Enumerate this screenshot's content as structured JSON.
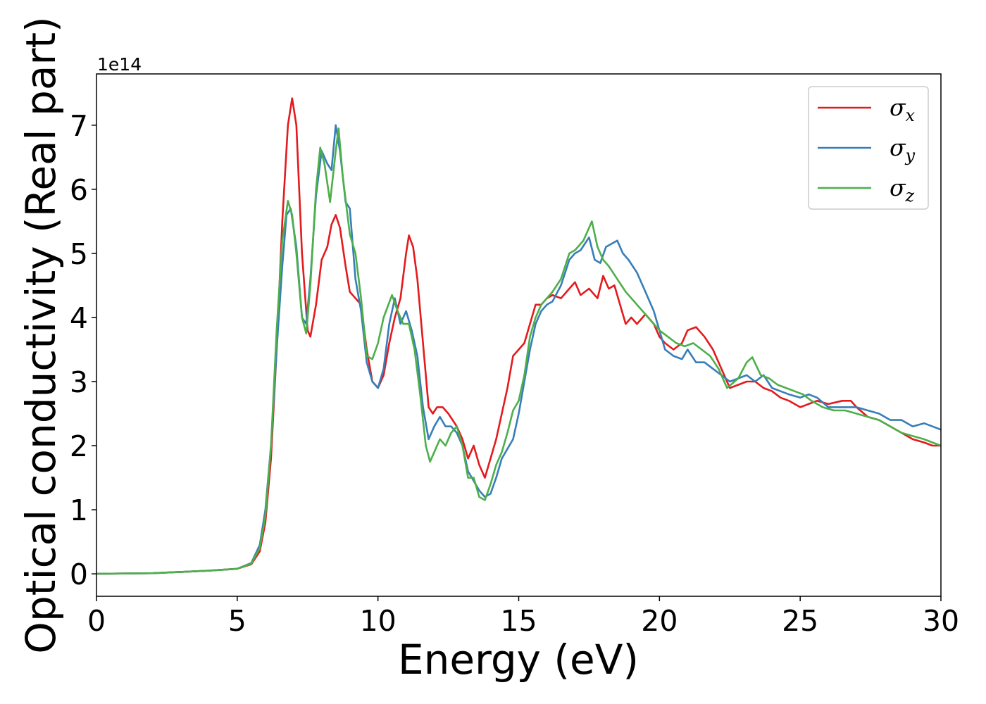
{
  "chart_data": {
    "type": "line",
    "title": "",
    "xlabel": "Energy (eV)",
    "ylabel": "Optical conductivity (Real part)",
    "y_offset_label": "1e14",
    "xlim": [
      0,
      30
    ],
    "ylim": [
      -0.35,
      7.8
    ],
    "x_ticks": [
      0,
      5,
      10,
      15,
      20,
      25,
      30
    ],
    "y_ticks": [
      0,
      1,
      2,
      3,
      4,
      5,
      6,
      7
    ],
    "grid": false,
    "legend_position": "top-right",
    "series": [
      {
        "name": "σ_x",
        "legend_base": "σ",
        "legend_sub": "x",
        "color": "#e41a1c",
        "points": [
          [
            0,
            0
          ],
          [
            2,
            0.01
          ],
          [
            4,
            0.05
          ],
          [
            5,
            0.08
          ],
          [
            5.5,
            0.15
          ],
          [
            5.8,
            0.35
          ],
          [
            6.0,
            0.8
          ],
          [
            6.2,
            1.8
          ],
          [
            6.4,
            3.5
          ],
          [
            6.6,
            5.5
          ],
          [
            6.8,
            7.0
          ],
          [
            6.95,
            7.42
          ],
          [
            7.1,
            7.0
          ],
          [
            7.3,
            5.0
          ],
          [
            7.5,
            3.8
          ],
          [
            7.6,
            3.7
          ],
          [
            7.8,
            4.2
          ],
          [
            8.0,
            4.9
          ],
          [
            8.2,
            5.1
          ],
          [
            8.35,
            5.45
          ],
          [
            8.5,
            5.6
          ],
          [
            8.65,
            5.4
          ],
          [
            8.85,
            4.8
          ],
          [
            9.0,
            4.4
          ],
          [
            9.2,
            4.3
          ],
          [
            9.4,
            4.2
          ],
          [
            9.6,
            3.5
          ],
          [
            9.8,
            3.0
          ],
          [
            10.0,
            2.9
          ],
          [
            10.2,
            3.1
          ],
          [
            10.4,
            3.6
          ],
          [
            10.6,
            4.0
          ],
          [
            10.8,
            4.3
          ],
          [
            11.0,
            5.0
          ],
          [
            11.1,
            5.28
          ],
          [
            11.25,
            5.1
          ],
          [
            11.4,
            4.6
          ],
          [
            11.6,
            3.6
          ],
          [
            11.8,
            2.6
          ],
          [
            11.95,
            2.5
          ],
          [
            12.1,
            2.6
          ],
          [
            12.3,
            2.6
          ],
          [
            12.5,
            2.5
          ],
          [
            12.8,
            2.3
          ],
          [
            13.0,
            2.1
          ],
          [
            13.2,
            1.8
          ],
          [
            13.4,
            2.0
          ],
          [
            13.6,
            1.7
          ],
          [
            13.8,
            1.5
          ],
          [
            14.0,
            1.8
          ],
          [
            14.2,
            2.1
          ],
          [
            14.4,
            2.5
          ],
          [
            14.6,
            2.9
          ],
          [
            14.8,
            3.4
          ],
          [
            15.0,
            3.5
          ],
          [
            15.2,
            3.6
          ],
          [
            15.4,
            3.9
          ],
          [
            15.6,
            4.2
          ],
          [
            15.8,
            4.2
          ],
          [
            16.0,
            4.3
          ],
          [
            16.2,
            4.35
          ],
          [
            16.5,
            4.3
          ],
          [
            16.8,
            4.45
          ],
          [
            17.0,
            4.55
          ],
          [
            17.2,
            4.35
          ],
          [
            17.5,
            4.45
          ],
          [
            17.8,
            4.3
          ],
          [
            18.0,
            4.65
          ],
          [
            18.2,
            4.45
          ],
          [
            18.4,
            4.5
          ],
          [
            18.6,
            4.2
          ],
          [
            18.8,
            3.9
          ],
          [
            19.0,
            4.0
          ],
          [
            19.2,
            3.9
          ],
          [
            19.5,
            4.05
          ],
          [
            19.8,
            3.9
          ],
          [
            20.0,
            3.7
          ],
          [
            20.2,
            3.6
          ],
          [
            20.5,
            3.5
          ],
          [
            20.8,
            3.6
          ],
          [
            21.0,
            3.8
          ],
          [
            21.3,
            3.85
          ],
          [
            21.6,
            3.7
          ],
          [
            21.9,
            3.5
          ],
          [
            22.2,
            3.2
          ],
          [
            22.5,
            2.9
          ],
          [
            22.8,
            2.95
          ],
          [
            23.1,
            3.0
          ],
          [
            23.4,
            3.0
          ],
          [
            23.7,
            2.9
          ],
          [
            24.0,
            2.85
          ],
          [
            24.3,
            2.75
          ],
          [
            24.6,
            2.7
          ],
          [
            25.0,
            2.6
          ],
          [
            25.3,
            2.65
          ],
          [
            25.6,
            2.7
          ],
          [
            26.0,
            2.65
          ],
          [
            26.5,
            2.7
          ],
          [
            26.8,
            2.7
          ],
          [
            27.0,
            2.6
          ],
          [
            27.4,
            2.45
          ],
          [
            27.8,
            2.4
          ],
          [
            28.2,
            2.3
          ],
          [
            28.6,
            2.2
          ],
          [
            29.0,
            2.1
          ],
          [
            29.4,
            2.05
          ],
          [
            29.7,
            2.0
          ],
          [
            30.0,
            2.0
          ]
        ]
      },
      {
        "name": "σ_y",
        "legend_base": "σ",
        "legend_sub": "y",
        "color": "#377eb8",
        "points": [
          [
            0,
            0
          ],
          [
            2,
            0.01
          ],
          [
            4,
            0.05
          ],
          [
            5,
            0.08
          ],
          [
            5.5,
            0.17
          ],
          [
            5.8,
            0.45
          ],
          [
            6.0,
            1.0
          ],
          [
            6.2,
            2.0
          ],
          [
            6.4,
            3.5
          ],
          [
            6.6,
            4.8
          ],
          [
            6.75,
            5.6
          ],
          [
            6.9,
            5.7
          ],
          [
            7.1,
            5.1
          ],
          [
            7.3,
            4.0
          ],
          [
            7.45,
            3.9
          ],
          [
            7.6,
            4.6
          ],
          [
            7.8,
            5.9
          ],
          [
            8.0,
            6.6
          ],
          [
            8.2,
            6.4
          ],
          [
            8.35,
            6.3
          ],
          [
            8.5,
            7.0
          ],
          [
            8.65,
            6.6
          ],
          [
            8.85,
            5.8
          ],
          [
            9.0,
            5.7
          ],
          [
            9.2,
            4.6
          ],
          [
            9.4,
            4.1
          ],
          [
            9.6,
            3.3
          ],
          [
            9.8,
            3.0
          ],
          [
            10.0,
            2.9
          ],
          [
            10.2,
            3.2
          ],
          [
            10.4,
            3.9
          ],
          [
            10.6,
            4.3
          ],
          [
            10.8,
            3.9
          ],
          [
            11.0,
            4.1
          ],
          [
            11.2,
            3.8
          ],
          [
            11.4,
            3.4
          ],
          [
            11.6,
            2.6
          ],
          [
            11.8,
            2.1
          ],
          [
            12.0,
            2.3
          ],
          [
            12.2,
            2.45
          ],
          [
            12.4,
            2.3
          ],
          [
            12.6,
            2.3
          ],
          [
            12.8,
            2.2
          ],
          [
            13.0,
            2.0
          ],
          [
            13.2,
            1.6
          ],
          [
            13.4,
            1.45
          ],
          [
            13.6,
            1.3
          ],
          [
            13.8,
            1.2
          ],
          [
            14.0,
            1.25
          ],
          [
            14.2,
            1.5
          ],
          [
            14.4,
            1.8
          ],
          [
            14.6,
            1.95
          ],
          [
            14.8,
            2.1
          ],
          [
            15.0,
            2.5
          ],
          [
            15.2,
            3.0
          ],
          [
            15.4,
            3.5
          ],
          [
            15.6,
            3.9
          ],
          [
            15.8,
            4.1
          ],
          [
            16.0,
            4.2
          ],
          [
            16.2,
            4.25
          ],
          [
            16.5,
            4.5
          ],
          [
            16.8,
            4.9
          ],
          [
            17.0,
            5.0
          ],
          [
            17.2,
            5.05
          ],
          [
            17.5,
            5.25
          ],
          [
            17.7,
            4.9
          ],
          [
            17.9,
            4.85
          ],
          [
            18.1,
            5.1
          ],
          [
            18.3,
            5.15
          ],
          [
            18.5,
            5.2
          ],
          [
            18.7,
            5.0
          ],
          [
            18.9,
            4.9
          ],
          [
            19.2,
            4.7
          ],
          [
            19.5,
            4.4
          ],
          [
            19.8,
            4.1
          ],
          [
            20.0,
            3.8
          ],
          [
            20.2,
            3.5
          ],
          [
            20.5,
            3.4
          ],
          [
            20.8,
            3.35
          ],
          [
            21.0,
            3.5
          ],
          [
            21.3,
            3.3
          ],
          [
            21.6,
            3.3
          ],
          [
            21.9,
            3.2
          ],
          [
            22.2,
            3.1
          ],
          [
            22.5,
            3.0
          ],
          [
            22.8,
            3.05
          ],
          [
            23.1,
            3.1
          ],
          [
            23.4,
            3.0
          ],
          [
            23.7,
            3.1
          ],
          [
            24.0,
            2.9
          ],
          [
            24.3,
            2.85
          ],
          [
            24.6,
            2.8
          ],
          [
            25.0,
            2.75
          ],
          [
            25.3,
            2.8
          ],
          [
            25.6,
            2.75
          ],
          [
            26.0,
            2.6
          ],
          [
            26.5,
            2.6
          ],
          [
            27.0,
            2.6
          ],
          [
            27.4,
            2.55
          ],
          [
            27.8,
            2.5
          ],
          [
            28.2,
            2.4
          ],
          [
            28.6,
            2.4
          ],
          [
            29.0,
            2.3
          ],
          [
            29.4,
            2.35
          ],
          [
            29.7,
            2.3
          ],
          [
            30.0,
            2.25
          ]
        ]
      },
      {
        "name": "σ_z",
        "legend_base": "σ",
        "legend_sub": "z",
        "color": "#4daf4a",
        "points": [
          [
            0,
            0
          ],
          [
            2,
            0.01
          ],
          [
            4,
            0.05
          ],
          [
            5,
            0.08
          ],
          [
            5.5,
            0.16
          ],
          [
            5.8,
            0.4
          ],
          [
            6.0,
            0.9
          ],
          [
            6.2,
            2.0
          ],
          [
            6.4,
            3.8
          ],
          [
            6.6,
            5.2
          ],
          [
            6.8,
            5.82
          ],
          [
            6.95,
            5.6
          ],
          [
            7.1,
            5.0
          ],
          [
            7.3,
            4.0
          ],
          [
            7.45,
            3.75
          ],
          [
            7.6,
            4.5
          ],
          [
            7.8,
            6.0
          ],
          [
            7.95,
            6.65
          ],
          [
            8.1,
            6.4
          ],
          [
            8.3,
            5.8
          ],
          [
            8.5,
            6.6
          ],
          [
            8.6,
            6.95
          ],
          [
            8.75,
            6.2
          ],
          [
            9.0,
            5.3
          ],
          [
            9.2,
            5.0
          ],
          [
            9.4,
            4.3
          ],
          [
            9.6,
            3.4
          ],
          [
            9.8,
            3.35
          ],
          [
            10.0,
            3.6
          ],
          [
            10.2,
            4.0
          ],
          [
            10.5,
            4.35
          ],
          [
            10.7,
            4.1
          ],
          [
            10.9,
            3.9
          ],
          [
            11.1,
            3.9
          ],
          [
            11.3,
            3.5
          ],
          [
            11.5,
            2.8
          ],
          [
            11.7,
            2.0
          ],
          [
            11.85,
            1.75
          ],
          [
            12.0,
            1.9
          ],
          [
            12.2,
            2.1
          ],
          [
            12.4,
            2.0
          ],
          [
            12.6,
            2.2
          ],
          [
            12.8,
            2.3
          ],
          [
            13.0,
            2.0
          ],
          [
            13.2,
            1.5
          ],
          [
            13.4,
            1.5
          ],
          [
            13.6,
            1.2
          ],
          [
            13.8,
            1.15
          ],
          [
            14.0,
            1.4
          ],
          [
            14.2,
            1.7
          ],
          [
            14.4,
            1.9
          ],
          [
            14.6,
            2.2
          ],
          [
            14.8,
            2.55
          ],
          [
            15.0,
            2.7
          ],
          [
            15.2,
            3.1
          ],
          [
            15.4,
            3.7
          ],
          [
            15.6,
            4.0
          ],
          [
            15.8,
            4.2
          ],
          [
            16.0,
            4.3
          ],
          [
            16.2,
            4.4
          ],
          [
            16.5,
            4.6
          ],
          [
            16.8,
            5.0
          ],
          [
            17.0,
            5.05
          ],
          [
            17.3,
            5.2
          ],
          [
            17.6,
            5.5
          ],
          [
            17.8,
            5.1
          ],
          [
            18.0,
            4.9
          ],
          [
            18.2,
            4.8
          ],
          [
            18.5,
            4.6
          ],
          [
            18.8,
            4.4
          ],
          [
            19.1,
            4.25
          ],
          [
            19.4,
            4.1
          ],
          [
            19.7,
            3.95
          ],
          [
            20.0,
            3.8
          ],
          [
            20.3,
            3.7
          ],
          [
            20.6,
            3.6
          ],
          [
            20.9,
            3.55
          ],
          [
            21.2,
            3.6
          ],
          [
            21.5,
            3.5
          ],
          [
            21.8,
            3.4
          ],
          [
            22.1,
            3.2
          ],
          [
            22.4,
            2.9
          ],
          [
            22.8,
            3.05
          ],
          [
            23.1,
            3.3
          ],
          [
            23.3,
            3.38
          ],
          [
            23.6,
            3.1
          ],
          [
            23.9,
            3.05
          ],
          [
            24.2,
            2.95
          ],
          [
            24.5,
            2.9
          ],
          [
            24.8,
            2.85
          ],
          [
            25.1,
            2.8
          ],
          [
            25.4,
            2.7
          ],
          [
            25.8,
            2.6
          ],
          [
            26.2,
            2.55
          ],
          [
            26.6,
            2.55
          ],
          [
            27.0,
            2.5
          ],
          [
            27.4,
            2.45
          ],
          [
            27.8,
            2.4
          ],
          [
            28.2,
            2.3
          ],
          [
            28.6,
            2.2
          ],
          [
            29.0,
            2.15
          ],
          [
            29.4,
            2.1
          ],
          [
            29.7,
            2.05
          ],
          [
            30.0,
            2.0
          ]
        ]
      }
    ]
  }
}
